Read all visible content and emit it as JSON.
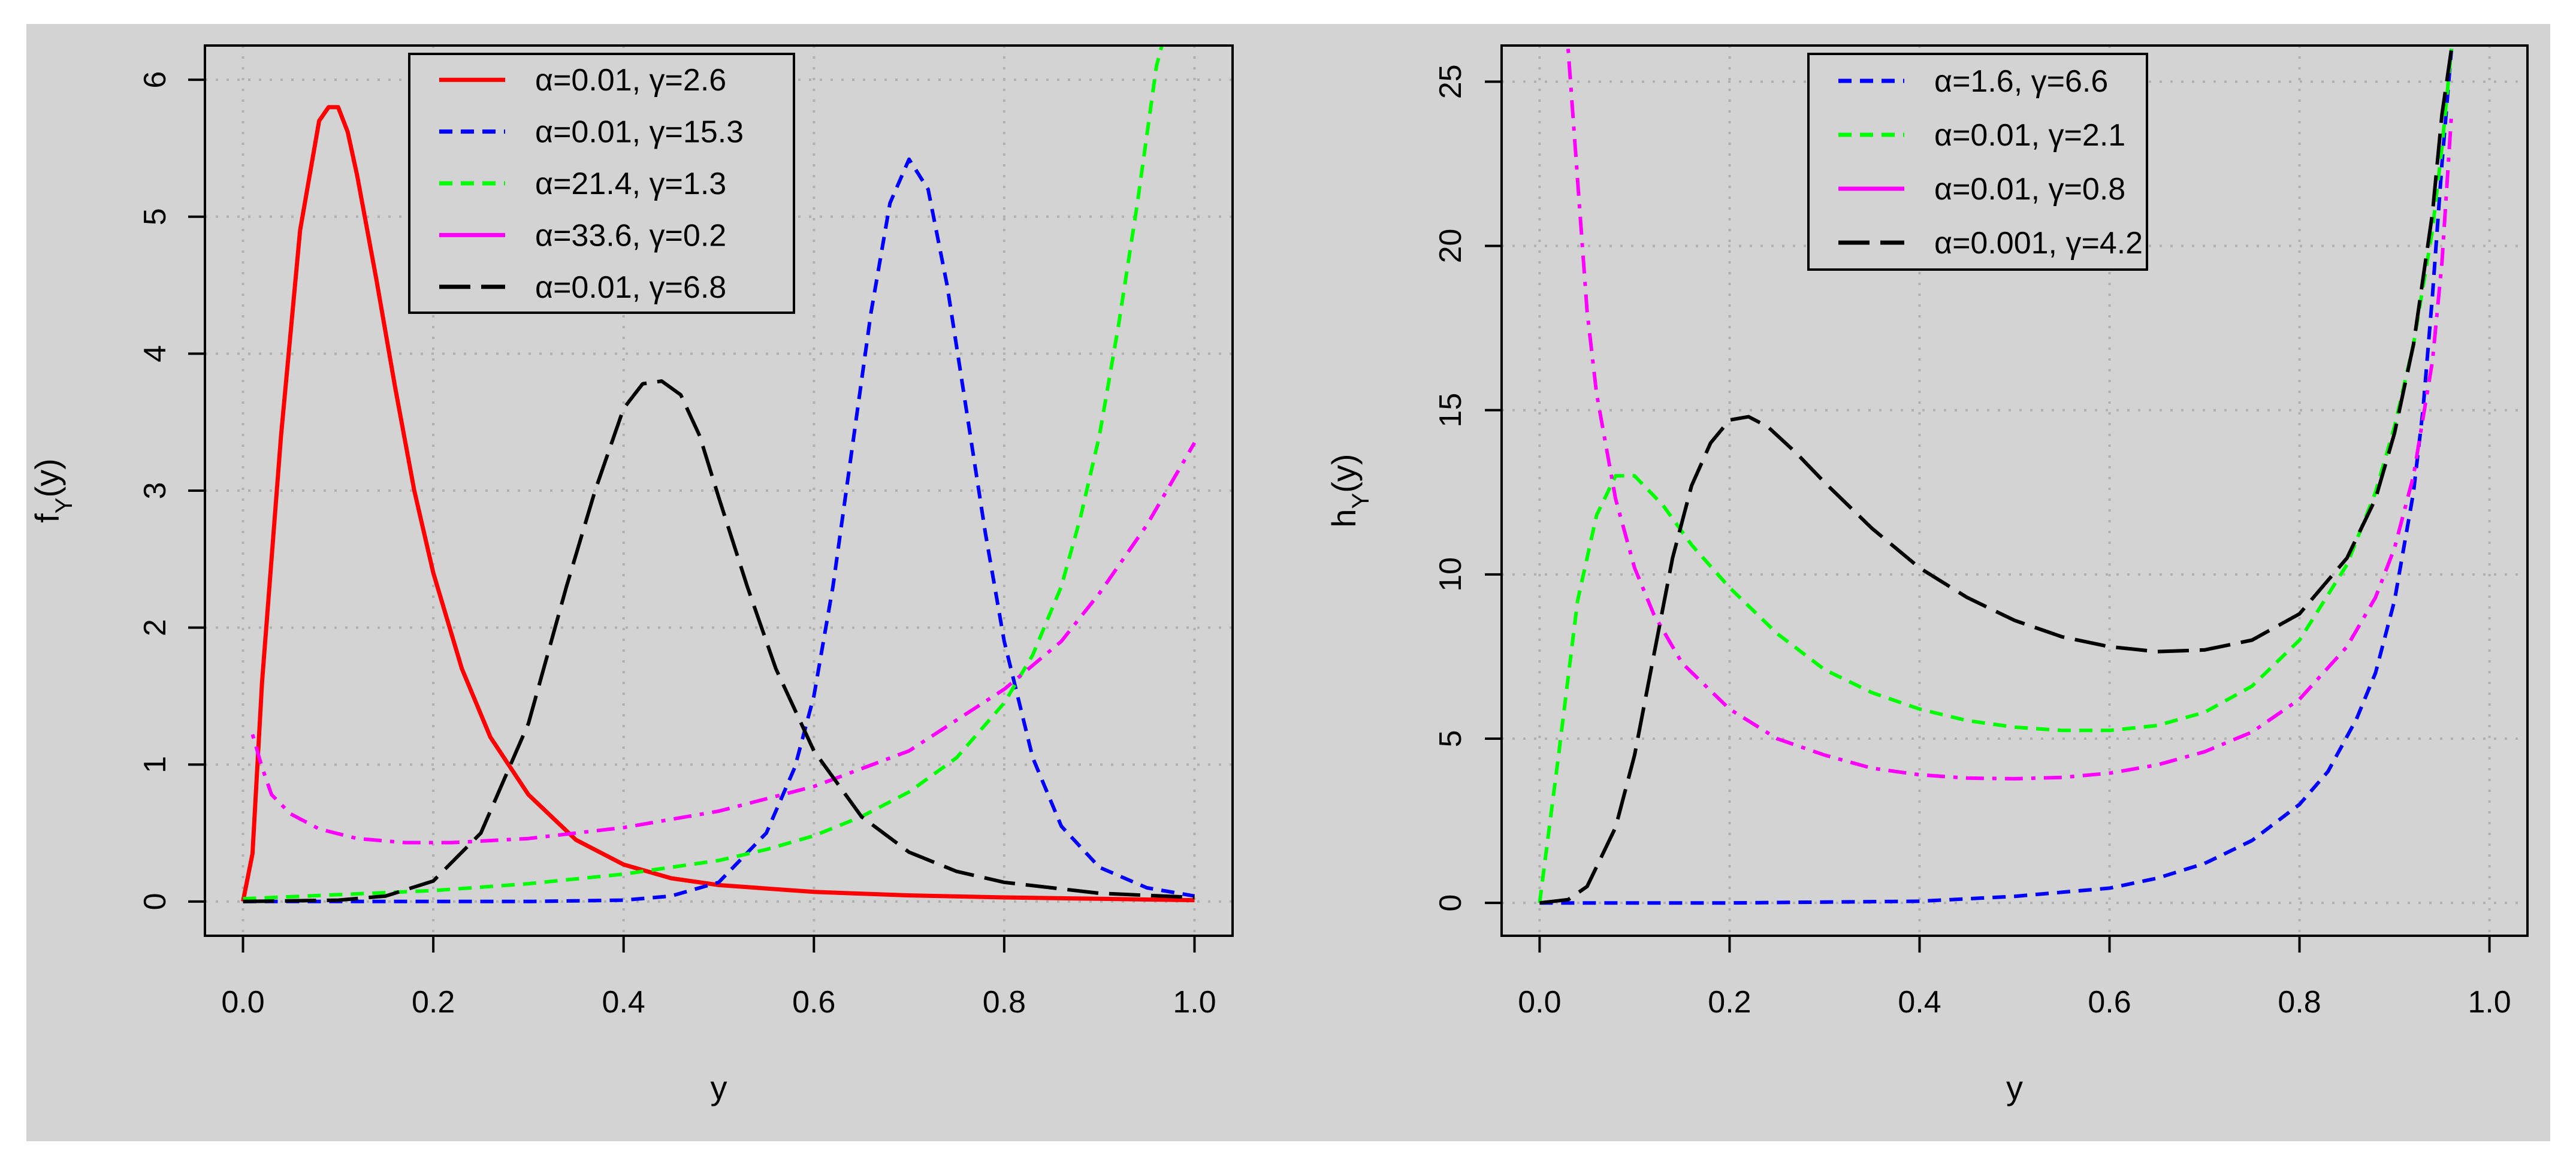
{
  "colors": {
    "background": "#d3d3d3",
    "grid": "#b0b0b0",
    "axis": "#000000",
    "legend_fill": "#d3d3d3"
  },
  "chart_data": [
    {
      "type": "line",
      "xlabel": "y",
      "ylabel": "f",
      "ylabel_sub": "Y",
      "ylabel_tail": "(y)",
      "xlim": [
        -0.04,
        1.04
      ],
      "ylim": [
        -0.25,
        6.25
      ],
      "xticks": [
        0.0,
        0.2,
        0.4,
        0.6,
        0.8,
        1.0
      ],
      "xtick_labels": [
        "0.0",
        "0.2",
        "0.4",
        "0.6",
        "0.8",
        "1.0"
      ],
      "yticks": [
        0,
        1,
        2,
        3,
        4,
        5,
        6
      ],
      "ytick_labels": [
        "0",
        "1",
        "2",
        "3",
        "4",
        "5",
        "6"
      ],
      "grid": true,
      "legend_position": "top-center",
      "series": [
        {
          "name": "α=0.01, γ=2.6",
          "color": "#ff0000",
          "style": "solid",
          "x": [
            0,
            0.01,
            0.02,
            0.04,
            0.06,
            0.08,
            0.09,
            0.1,
            0.11,
            0.12,
            0.14,
            0.16,
            0.18,
            0.2,
            0.23,
            0.26,
            0.3,
            0.35,
            0.4,
            0.45,
            0.5,
            0.6,
            0.7,
            0.8,
            0.9,
            1.0
          ],
          "y": [
            0,
            0.35,
            1.6,
            3.4,
            4.9,
            5.7,
            5.8,
            5.8,
            5.62,
            5.3,
            4.55,
            3.75,
            3.0,
            2.4,
            1.7,
            1.2,
            0.78,
            0.45,
            0.27,
            0.17,
            0.12,
            0.07,
            0.045,
            0.03,
            0.02,
            0.01
          ]
        },
        {
          "name": "α=0.01, γ=15.3",
          "color": "#0000ff",
          "style": "dashed",
          "x": [
            0,
            0.1,
            0.2,
            0.3,
            0.4,
            0.45,
            0.5,
            0.55,
            0.58,
            0.6,
            0.62,
            0.64,
            0.66,
            0.68,
            0.7,
            0.72,
            0.74,
            0.76,
            0.78,
            0.8,
            0.83,
            0.86,
            0.9,
            0.95,
            1.0
          ],
          "y": [
            0,
            0,
            0,
            0,
            0.01,
            0.04,
            0.14,
            0.5,
            0.98,
            1.5,
            2.3,
            3.3,
            4.3,
            5.1,
            5.42,
            5.2,
            4.5,
            3.6,
            2.7,
            1.9,
            1.05,
            0.55,
            0.25,
            0.1,
            0.04
          ]
        },
        {
          "name": "α=21.4, γ=1.3",
          "color": "#00ff00",
          "style": "dashed",
          "x": [
            0,
            0.1,
            0.2,
            0.3,
            0.4,
            0.5,
            0.55,
            0.6,
            0.65,
            0.7,
            0.75,
            0.8,
            0.83,
            0.86,
            0.88,
            0.9,
            0.92,
            0.94,
            0.96,
            0.975
          ],
          "y": [
            0.02,
            0.05,
            0.08,
            0.13,
            0.2,
            0.3,
            0.38,
            0.48,
            0.62,
            0.8,
            1.05,
            1.45,
            1.8,
            2.3,
            2.8,
            3.4,
            4.2,
            5.1,
            6.1,
            6.5
          ]
        },
        {
          "name": "α=33.6, γ=0.2",
          "color": "#ff00ff",
          "style": "dotdash",
          "x": [
            0.01,
            0.02,
            0.03,
            0.05,
            0.08,
            0.12,
            0.17,
            0.22,
            0.3,
            0.4,
            0.5,
            0.6,
            0.7,
            0.8,
            0.86,
            0.9,
            0.95,
            1.0
          ],
          "y": [
            1.22,
            0.98,
            0.78,
            0.64,
            0.53,
            0.46,
            0.43,
            0.43,
            0.46,
            0.54,
            0.66,
            0.84,
            1.1,
            1.55,
            1.9,
            2.25,
            2.75,
            3.35
          ]
        },
        {
          "name": "α=0.01, γ=6.8",
          "color": "#000000",
          "style": "longdash",
          "x": [
            0,
            0.1,
            0.15,
            0.2,
            0.25,
            0.3,
            0.34,
            0.37,
            0.4,
            0.42,
            0.44,
            0.46,
            0.48,
            0.5,
            0.53,
            0.56,
            0.6,
            0.65,
            0.7,
            0.75,
            0.8,
            0.9,
            1.0
          ],
          "y": [
            0,
            0.01,
            0.04,
            0.15,
            0.5,
            1.3,
            2.3,
            3.0,
            3.6,
            3.78,
            3.8,
            3.7,
            3.4,
            2.95,
            2.3,
            1.7,
            1.1,
            0.62,
            0.36,
            0.22,
            0.14,
            0.06,
            0.03
          ]
        }
      ]
    },
    {
      "type": "line",
      "xlabel": "y",
      "ylabel": "h",
      "ylabel_sub": "Y",
      "ylabel_tail": "(y)",
      "xlim": [
        -0.04,
        1.04
      ],
      "ylim": [
        -1.0,
        26.1
      ],
      "xticks": [
        0.0,
        0.2,
        0.4,
        0.6,
        0.8,
        1.0
      ],
      "xtick_labels": [
        "0.0",
        "0.2",
        "0.4",
        "0.6",
        "0.8",
        "1.0"
      ],
      "yticks": [
        0,
        5,
        10,
        15,
        20,
        25
      ],
      "ytick_labels": [
        "0",
        "5",
        "10",
        "15",
        "20",
        "25"
      ],
      "grid": true,
      "legend_position": "top-center",
      "series": [
        {
          "name": "α=1.6, γ=6.6",
          "color": "#0000ff",
          "style": "dashed",
          "x": [
            0,
            0.2,
            0.4,
            0.5,
            0.6,
            0.65,
            0.7,
            0.75,
            0.8,
            0.83,
            0.86,
            0.88,
            0.9,
            0.92,
            0.93,
            0.94,
            0.95,
            0.96
          ],
          "y": [
            0,
            0,
            0.05,
            0.2,
            0.45,
            0.75,
            1.2,
            1.9,
            3.0,
            4.0,
            5.6,
            7.0,
            9.2,
            12.5,
            15.0,
            18.5,
            22.5,
            26.0
          ]
        },
        {
          "name": "α=0.01, γ=2.1",
          "color": "#00ff00",
          "style": "dashed",
          "x": [
            0,
            0.02,
            0.04,
            0.06,
            0.08,
            0.1,
            0.13,
            0.16,
            0.2,
            0.25,
            0.3,
            0.35,
            0.4,
            0.45,
            0.5,
            0.55,
            0.6,
            0.65,
            0.7,
            0.75,
            0.8,
            0.85,
            0.88,
            0.9,
            0.92,
            0.94,
            0.95,
            0.96
          ],
          "y": [
            0,
            4.5,
            9.2,
            11.8,
            13.0,
            13.0,
            12.1,
            10.9,
            9.6,
            8.2,
            7.1,
            6.4,
            5.9,
            5.55,
            5.35,
            5.25,
            5.25,
            5.4,
            5.8,
            6.6,
            8.0,
            10.3,
            12.5,
            14.5,
            17.0,
            20.5,
            23.0,
            26.0
          ]
        },
        {
          "name": "α=0.01, γ=0.8",
          "color": "#ff00ff",
          "style": "dotdash",
          "x": [
            0.03,
            0.04,
            0.05,
            0.06,
            0.08,
            0.1,
            0.12,
            0.15,
            0.2,
            0.25,
            0.3,
            0.35,
            0.4,
            0.45,
            0.5,
            0.55,
            0.6,
            0.65,
            0.7,
            0.75,
            0.8,
            0.85,
            0.88,
            0.9,
            0.92,
            0.94,
            0.95,
            0.96
          ],
          "y": [
            26.0,
            22.0,
            18.0,
            15.5,
            12.3,
            10.2,
            8.8,
            7.3,
            5.9,
            5.0,
            4.5,
            4.1,
            3.9,
            3.8,
            3.78,
            3.82,
            3.95,
            4.2,
            4.6,
            5.2,
            6.2,
            7.8,
            9.3,
            10.8,
            13.0,
            16.5,
            19.5,
            24.0
          ]
        },
        {
          "name": "α=0.001, γ=4.2",
          "color": "#000000",
          "style": "longdash",
          "x": [
            0,
            0.03,
            0.05,
            0.08,
            0.1,
            0.12,
            0.14,
            0.16,
            0.18,
            0.2,
            0.22,
            0.24,
            0.27,
            0.3,
            0.35,
            0.4,
            0.45,
            0.5,
            0.55,
            0.6,
            0.65,
            0.7,
            0.75,
            0.8,
            0.85,
            0.88,
            0.9,
            0.92,
            0.94,
            0.95,
            0.96
          ],
          "y": [
            0,
            0.1,
            0.5,
            2.3,
            4.5,
            7.5,
            10.5,
            12.7,
            14.0,
            14.7,
            14.8,
            14.5,
            13.7,
            12.8,
            11.4,
            10.2,
            9.3,
            8.6,
            8.1,
            7.8,
            7.65,
            7.7,
            8.0,
            8.8,
            10.5,
            12.3,
            14.3,
            17.0,
            21.0,
            24.0,
            26.0
          ]
        }
      ]
    }
  ]
}
